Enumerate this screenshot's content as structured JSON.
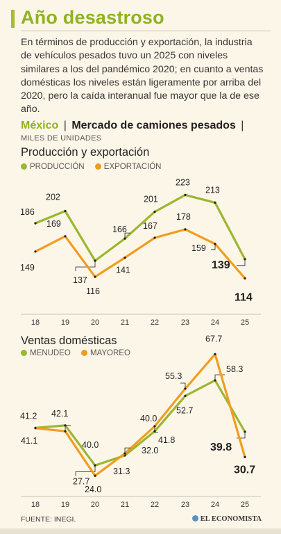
{
  "title": "Año desastroso",
  "intro": "En términos de producción y exportación, la industria de vehículos pesados tuvo un 2025 con niveles similares a los del pandémico 2020; en cuanto a ventas domésticas los niveles están ligeramente por arriba del 2020, pero la caída interanual fue mayor que la de ese año.",
  "header": {
    "country": "México",
    "separator": "|",
    "market": "Mercado de camiones pesados",
    "units": "MILES DE UNIDADES"
  },
  "colors": {
    "green": "#9bb72f",
    "orange": "#f29c1f",
    "brand_green": "#8fb321"
  },
  "footer": {
    "source": "FUENTE: INEGI.",
    "brand": "EL ECONOMISTA"
  },
  "chart_data": [
    {
      "type": "line",
      "title": "Producción y exportación",
      "categories": [
        "18",
        "19",
        "20",
        "21",
        "22",
        "23",
        "24",
        "25"
      ],
      "ylim": [
        100,
        230
      ],
      "grid": false,
      "legend": "top-left",
      "series": [
        {
          "name": "PRODUCCIÓN",
          "color": "#9bb72f",
          "values": [
            186,
            202,
            137,
            166,
            201,
            223,
            213,
            139
          ]
        },
        {
          "name": "EXPORTACIÓN",
          "color": "#f29c1f",
          "values": [
            149,
            169,
            116,
            141,
            167,
            178,
            159,
            114
          ]
        }
      ]
    },
    {
      "type": "line",
      "title": "Ventas domésticas",
      "categories": [
        "18",
        "19",
        "20",
        "21",
        "22",
        "23",
        "24",
        "25"
      ],
      "ylim": [
        20,
        70
      ],
      "grid": false,
      "legend": "top-left",
      "series": [
        {
          "name": "MENUDEO",
          "color": "#9bb72f",
          "values": [
            41.2,
            42.1,
            27.7,
            31.3,
            40.0,
            52.7,
            58.3,
            39.8
          ]
        },
        {
          "name": "MAYOREO",
          "color": "#f29c1f",
          "values": [
            41.1,
            40.0,
            24.0,
            32.0,
            41.8,
            55.3,
            67.7,
            30.7
          ]
        }
      ]
    }
  ]
}
